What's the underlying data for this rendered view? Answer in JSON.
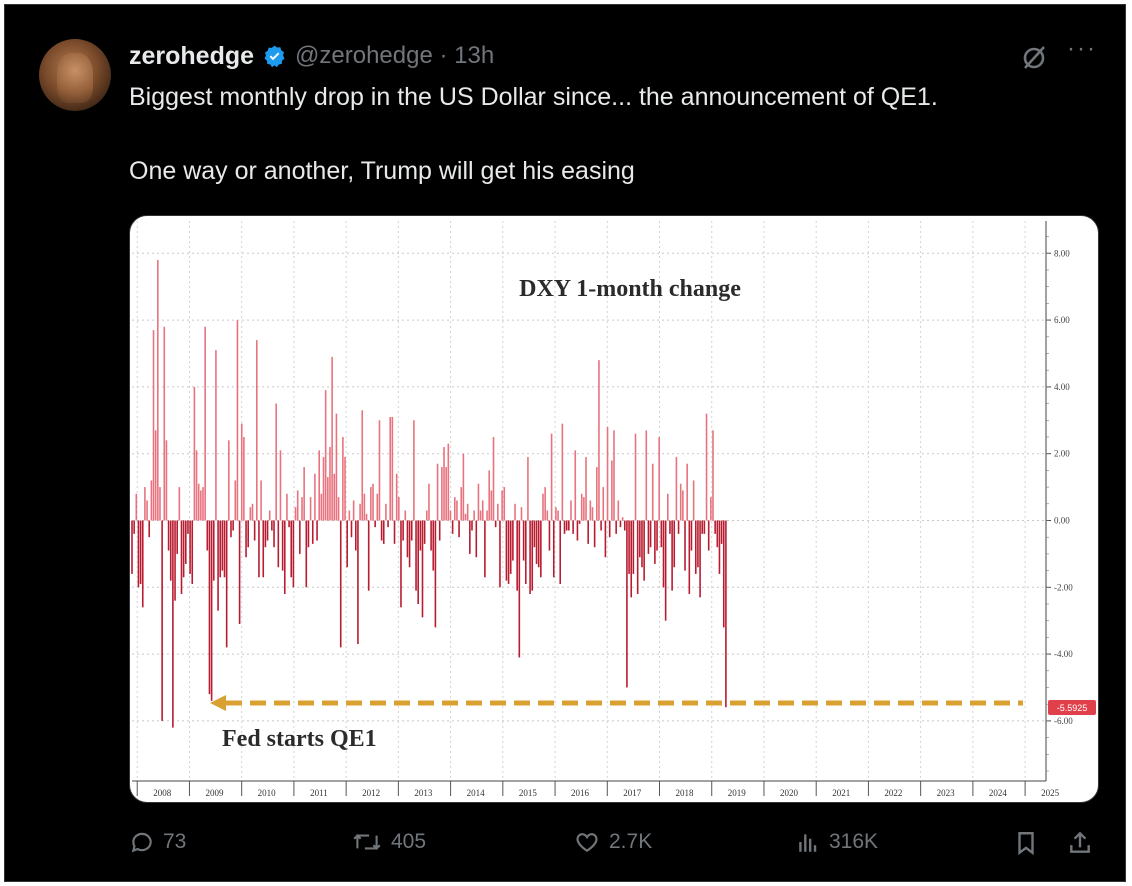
{
  "post": {
    "author_name": "zerohedge",
    "handle_time": "@zerohedge · 13h",
    "text_line1": "Biggest monthly drop in the US Dollar since... the announcement of QE1.",
    "text_line2": "One way or another, Trump will get his easing"
  },
  "actions": {
    "replies": "73",
    "reposts": "405",
    "likes": "2.7K",
    "views": "316K"
  },
  "colors": {
    "background": "#000000",
    "text": "#e7e9ea",
    "muted": "#71767b",
    "verified": "#1d9bf0",
    "bar": "#c8253a",
    "arrow": "#d9a032",
    "last_label_bg": "#e0404a"
  },
  "icons": [
    "verified-badge-icon",
    "grok-icon",
    "more-icon",
    "reply-icon",
    "repost-icon",
    "like-icon",
    "views-icon",
    "bookmark-icon",
    "share-icon"
  ],
  "chart_data": {
    "type": "bar",
    "title": "DXY 1-month change",
    "annotation": "Fed starts QE1",
    "last_value_label": "-5.5925",
    "ylim": [
      -7.5,
      8.8
    ],
    "yticks": [
      8,
      6,
      4,
      2,
      0,
      -2,
      -4,
      -6
    ],
    "ytick_labels": [
      "8.00",
      "6.00",
      "4.00",
      "2.00",
      "0.00",
      "-2.00",
      "-4.00",
      "-6.00"
    ],
    "xlim": [
      2007.9,
      2025.4
    ],
    "xticks": [
      "2008",
      "2009",
      "2010",
      "2011",
      "2012",
      "2013",
      "2014",
      "2015",
      "2016",
      "2017",
      "2018",
      "2019",
      "2020",
      "2021",
      "2022",
      "2023",
      "2024",
      "2025"
    ],
    "x_start": 2007.9,
    "x_step": 0.0412,
    "grid": true,
    "values": [
      -1.6,
      -0.4,
      0.8,
      -2.0,
      -1.9,
      -2.6,
      1.0,
      0.6,
      -0.5,
      1.2,
      5.7,
      2.7,
      7.8,
      1.0,
      -6.0,
      5.8,
      2.4,
      -0.9,
      -1.8,
      -6.2,
      -2.4,
      -1.0,
      1.0,
      -2.2,
      -1.7,
      -1.3,
      -0.4,
      -1.6,
      -1.9,
      4.0,
      2.1,
      1.1,
      0.9,
      1.0,
      5.8,
      -0.9,
      -5.2,
      -5.4,
      -1.8,
      5.1,
      -2.7,
      -1.7,
      -1.5,
      -1.7,
      -3.8,
      2.4,
      -0.5,
      -0.3,
      1.2,
      6.0,
      -3.1,
      2.9,
      2.5,
      -1.1,
      -0.8,
      0.4,
      0.5,
      -0.6,
      5.4,
      -1.7,
      1.2,
      -1.7,
      -0.8,
      -0.6,
      0.3,
      -0.3,
      -0.8,
      3.5,
      -1.4,
      2.1,
      -1.5,
      -2.2,
      0.8,
      -0.2,
      -1.7,
      -2.0,
      0.4,
      0.9,
      -1.0,
      0.7,
      1.6,
      -2.0,
      -0.8,
      0.7,
      -0.7,
      1.4,
      -0.6,
      2.1,
      0.8,
      1.9,
      3.9,
      1.3,
      2.2,
      4.9,
      1.4,
      3.2,
      0.7,
      -3.8,
      2.5,
      1.9,
      -1.4,
      0.3,
      -0.5,
      0.6,
      -0.9,
      -3.7,
      0.5,
      3.3,
      0.8,
      0.2,
      -2.1,
      1.0,
      1.1,
      -0.2,
      0.8,
      3.0,
      -0.6,
      -0.7,
      0.5,
      -0.2,
      3.1,
      3.1,
      -0.7,
      1.4,
      0.7,
      -2.6,
      -0.6,
      0.3,
      -1.1,
      -1.4,
      -0.6,
      3.0,
      -2.1,
      -2.5,
      -0.9,
      -2.9,
      -0.7,
      0.3,
      1.1,
      -0.9,
      -1.5,
      -3.2,
      1.7,
      -0.6,
      1.6,
      2.2,
      1.6,
      2.3,
      0.3,
      -0.4,
      0.7,
      0.6,
      -0.5,
      1.0,
      2.0,
      0.2,
      0.5,
      -1.0,
      -0.3,
      0.3,
      -1.1,
      1.1,
      0.3,
      0.6,
      -1.7,
      0.3,
      1.5,
      0.9,
      2.5,
      -0.2,
      0.5,
      -2.0,
      0.9,
      1.0,
      -1.8,
      -1.9,
      -1.6,
      -1.2,
      0.5,
      -2.1,
      -4.1,
      0.4,
      -1.2,
      -1.9,
      1.9,
      -2.2,
      -2.1,
      -0.8,
      -1.3,
      -1.4,
      -1.7,
      0.8,
      1.0,
      0.3,
      -0.9,
      2.6,
      -1.7,
      0.4,
      0.3,
      -1.9,
      2.9,
      -0.4,
      -0.3,
      -0.3,
      0.6,
      -0.4,
      2.1,
      -0.6,
      -0.1,
      0.8,
      0.7,
      1.9,
      -0.7,
      0.6,
      0.4,
      -0.8,
      1.6,
      4.8,
      -0.3,
      1.0,
      -1.1,
      2.8,
      -0.5,
      1.8,
      2.7,
      -0.4,
      0.6,
      -0.2,
      0.1,
      -0.3,
      -5.0,
      -1.6,
      -2.3,
      -1.6,
      2.6,
      -2.2,
      -1.1,
      -1.4,
      -1.8,
      2.7,
      -1.0,
      -0.8,
      1.7,
      -1.3,
      -0.9,
      2.5,
      -0.8,
      -2.0,
      -3.0,
      0.8,
      -0.4,
      -2.1,
      -1.4,
      1.9,
      -0.4,
      1.1,
      0.9,
      -1.5,
      1.7,
      -2.2,
      -0.9,
      1.2,
      -1.6,
      -1.4,
      -2.3,
      -0.4,
      -0.4,
      3.2,
      -0.9,
      0.7,
      2.7,
      -0.4,
      -0.8,
      -1.6,
      -0.7,
      -3.2,
      -5.59
    ]
  }
}
